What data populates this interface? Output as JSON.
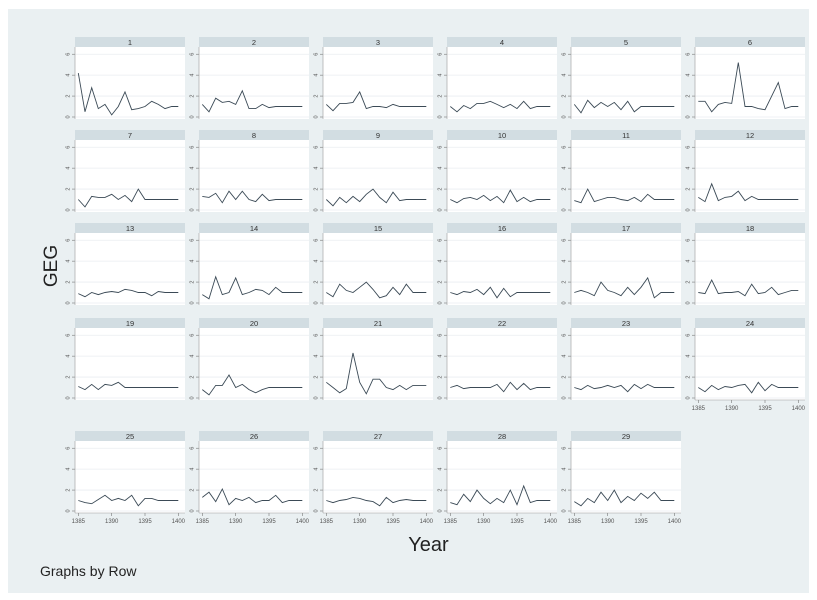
{
  "chart_data": {
    "type": "line",
    "layout": "small-multiples",
    "ylabel": "GEG",
    "xlabel": "Year",
    "note": "Graphs by Row",
    "x": [
      1385,
      1386,
      1387,
      1388,
      1389,
      1390,
      1391,
      1392,
      1393,
      1394,
      1395,
      1396,
      1397,
      1398,
      1399,
      1400
    ],
    "xticks": [
      "1385",
      "1390",
      "1395",
      "1400"
    ],
    "yticks": [
      "0",
      "2",
      "4",
      "6"
    ],
    "ylim": [
      0,
      6.5
    ],
    "xlim": [
      1384.5,
      1401
    ],
    "grid": true,
    "panels": [
      {
        "name": "1",
        "values": [
          4.2,
          0.5,
          2.8,
          0.8,
          1.2,
          0.2,
          1.0,
          2.4,
          0.7,
          0.8,
          1.0,
          1.5,
          1.2,
          0.8,
          1.0,
          1.0
        ]
      },
      {
        "name": "2",
        "values": [
          1.2,
          0.5,
          1.8,
          1.4,
          1.5,
          1.2,
          2.5,
          0.8,
          0.8,
          1.2,
          0.9,
          1.0,
          1.0,
          1.0,
          1.0,
          1.0
        ]
      },
      {
        "name": "3",
        "values": [
          1.2,
          0.6,
          1.3,
          1.3,
          1.4,
          2.4,
          0.8,
          1.0,
          1.0,
          0.9,
          1.2,
          1.0,
          1.0,
          1.0,
          1.0,
          1.0
        ]
      },
      {
        "name": "4",
        "values": [
          1.0,
          0.5,
          1.1,
          0.8,
          1.3,
          1.3,
          1.5,
          1.2,
          0.9,
          1.2,
          0.8,
          1.5,
          0.8,
          1.0,
          1.0,
          1.0
        ]
      },
      {
        "name": "5",
        "values": [
          1.2,
          0.4,
          1.6,
          0.9,
          1.4,
          1.0,
          1.4,
          0.7,
          1.5,
          0.5,
          1.0,
          1.0,
          1.0,
          1.0,
          1.0,
          1.0
        ]
      },
      {
        "name": "6",
        "values": [
          1.5,
          1.5,
          0.5,
          1.2,
          1.4,
          1.3,
          5.2,
          1.0,
          1.0,
          0.8,
          0.7,
          2.0,
          3.3,
          0.8,
          1.0,
          1.0
        ]
      },
      {
        "name": "7",
        "values": [
          1.0,
          0.3,
          1.3,
          1.2,
          1.2,
          1.5,
          1.0,
          1.4,
          0.8,
          2.0,
          1.0,
          1.0,
          1.0,
          1.0,
          1.0,
          1.0
        ]
      },
      {
        "name": "8",
        "values": [
          1.3,
          1.2,
          1.6,
          0.7,
          1.8,
          1.0,
          1.8,
          1.0,
          0.8,
          1.5,
          0.9,
          1.0,
          1.0,
          1.0,
          1.0,
          1.0
        ]
      },
      {
        "name": "9",
        "values": [
          1.0,
          0.4,
          1.2,
          0.7,
          1.3,
          0.8,
          1.5,
          2.0,
          1.2,
          0.7,
          1.7,
          0.9,
          1.0,
          1.0,
          1.0,
          1.0
        ]
      },
      {
        "name": "10",
        "values": [
          1.0,
          0.7,
          1.1,
          1.2,
          1.0,
          1.4,
          0.9,
          1.3,
          0.7,
          1.9,
          0.8,
          1.2,
          0.8,
          1.0,
          1.0,
          1.0
        ]
      },
      {
        "name": "11",
        "values": [
          0.9,
          0.7,
          2.0,
          0.8,
          1.0,
          1.2,
          1.2,
          1.0,
          0.9,
          1.2,
          0.8,
          1.5,
          1.0,
          1.0,
          1.0,
          1.0
        ]
      },
      {
        "name": "12",
        "values": [
          1.2,
          0.8,
          2.5,
          0.9,
          1.2,
          1.3,
          1.8,
          0.9,
          1.3,
          1.0,
          1.0,
          1.0,
          1.0,
          1.0,
          1.0,
          1.0
        ]
      },
      {
        "name": "13",
        "values": [
          0.9,
          0.6,
          1.0,
          0.8,
          1.0,
          1.1,
          1.0,
          1.3,
          1.2,
          1.0,
          1.0,
          0.7,
          1.1,
          1.0,
          1.0,
          1.0
        ]
      },
      {
        "name": "14",
        "values": [
          0.8,
          0.4,
          2.5,
          0.8,
          1.0,
          2.4,
          0.8,
          1.0,
          1.3,
          1.2,
          0.8,
          1.5,
          1.0,
          1.0,
          1.0,
          1.0
        ]
      },
      {
        "name": "15",
        "values": [
          1.0,
          0.6,
          1.8,
          1.2,
          1.0,
          1.5,
          2.0,
          1.3,
          0.5,
          0.7,
          1.5,
          0.8,
          1.8,
          1.0,
          1.0,
          1.0
        ]
      },
      {
        "name": "16",
        "values": [
          1.0,
          0.8,
          1.1,
          1.0,
          1.3,
          0.8,
          1.5,
          0.5,
          1.4,
          0.6,
          1.0,
          1.0,
          1.0,
          1.0,
          1.0,
          1.0
        ]
      },
      {
        "name": "17",
        "values": [
          1.0,
          1.2,
          1.0,
          0.7,
          2.0,
          1.2,
          1.0,
          0.7,
          1.5,
          0.8,
          1.5,
          2.4,
          0.5,
          1.0,
          1.0,
          1.0
        ]
      },
      {
        "name": "18",
        "values": [
          1.0,
          0.9,
          2.2,
          0.9,
          1.0,
          1.0,
          1.1,
          0.7,
          1.8,
          0.9,
          1.0,
          1.5,
          0.8,
          1.0,
          1.2,
          1.2
        ]
      },
      {
        "name": "19",
        "values": [
          1.1,
          0.8,
          1.3,
          0.8,
          1.3,
          1.2,
          1.5,
          1.0,
          1.0,
          1.0,
          1.0,
          1.0,
          1.0,
          1.0,
          1.0,
          1.0
        ]
      },
      {
        "name": "20",
        "values": [
          0.8,
          0.3,
          1.2,
          1.2,
          2.2,
          1.0,
          1.3,
          0.8,
          0.5,
          0.8,
          1.0,
          1.0,
          1.0,
          1.0,
          1.0,
          1.0
        ]
      },
      {
        "name": "21",
        "values": [
          1.5,
          1.0,
          0.5,
          0.9,
          4.3,
          1.5,
          0.4,
          1.8,
          1.8,
          1.0,
          0.8,
          1.2,
          0.8,
          1.2,
          1.2,
          1.2
        ]
      },
      {
        "name": "22",
        "values": [
          1.0,
          1.2,
          0.9,
          1.0,
          1.0,
          1.0,
          1.0,
          1.3,
          0.6,
          1.5,
          0.8,
          1.4,
          0.8,
          1.0,
          1.0,
          1.0
        ]
      },
      {
        "name": "23",
        "values": [
          1.0,
          0.8,
          1.2,
          0.9,
          1.0,
          1.2,
          1.0,
          1.2,
          0.6,
          1.3,
          0.9,
          1.3,
          1.0,
          1.0,
          1.0,
          1.0
        ]
      },
      {
        "name": "24",
        "values": [
          1.0,
          0.6,
          1.2,
          0.8,
          1.1,
          1.0,
          1.2,
          1.3,
          0.5,
          1.5,
          0.7,
          1.3,
          1.0,
          1.0,
          1.0,
          1.0
        ]
      },
      {
        "name": "25",
        "values": [
          1.0,
          0.8,
          0.7,
          1.1,
          1.5,
          1.0,
          1.2,
          1.0,
          1.5,
          0.5,
          1.2,
          1.2,
          1.0,
          1.0,
          1.0,
          1.0
        ]
      },
      {
        "name": "26",
        "values": [
          1.3,
          1.8,
          0.9,
          2.1,
          0.6,
          1.2,
          1.0,
          1.3,
          0.8,
          1.0,
          1.0,
          1.5,
          0.8,
          1.0,
          1.0,
          1.0
        ]
      },
      {
        "name": "27",
        "values": [
          1.0,
          0.8,
          1.0,
          1.1,
          1.3,
          1.2,
          1.0,
          0.9,
          0.5,
          1.3,
          0.8,
          1.0,
          1.1,
          1.0,
          1.0,
          1.0
        ]
      },
      {
        "name": "28",
        "values": [
          0.8,
          0.6,
          1.6,
          0.9,
          2.0,
          1.2,
          0.7,
          1.2,
          0.8,
          2.0,
          0.6,
          2.4,
          0.8,
          1.0,
          1.0,
          1.0
        ]
      },
      {
        "name": "29",
        "values": [
          0.9,
          0.5,
          1.2,
          0.8,
          1.8,
          1.0,
          2.0,
          0.8,
          1.4,
          1.0,
          1.7,
          1.2,
          1.8,
          1.0,
          1.0,
          1.0
        ]
      }
    ]
  }
}
